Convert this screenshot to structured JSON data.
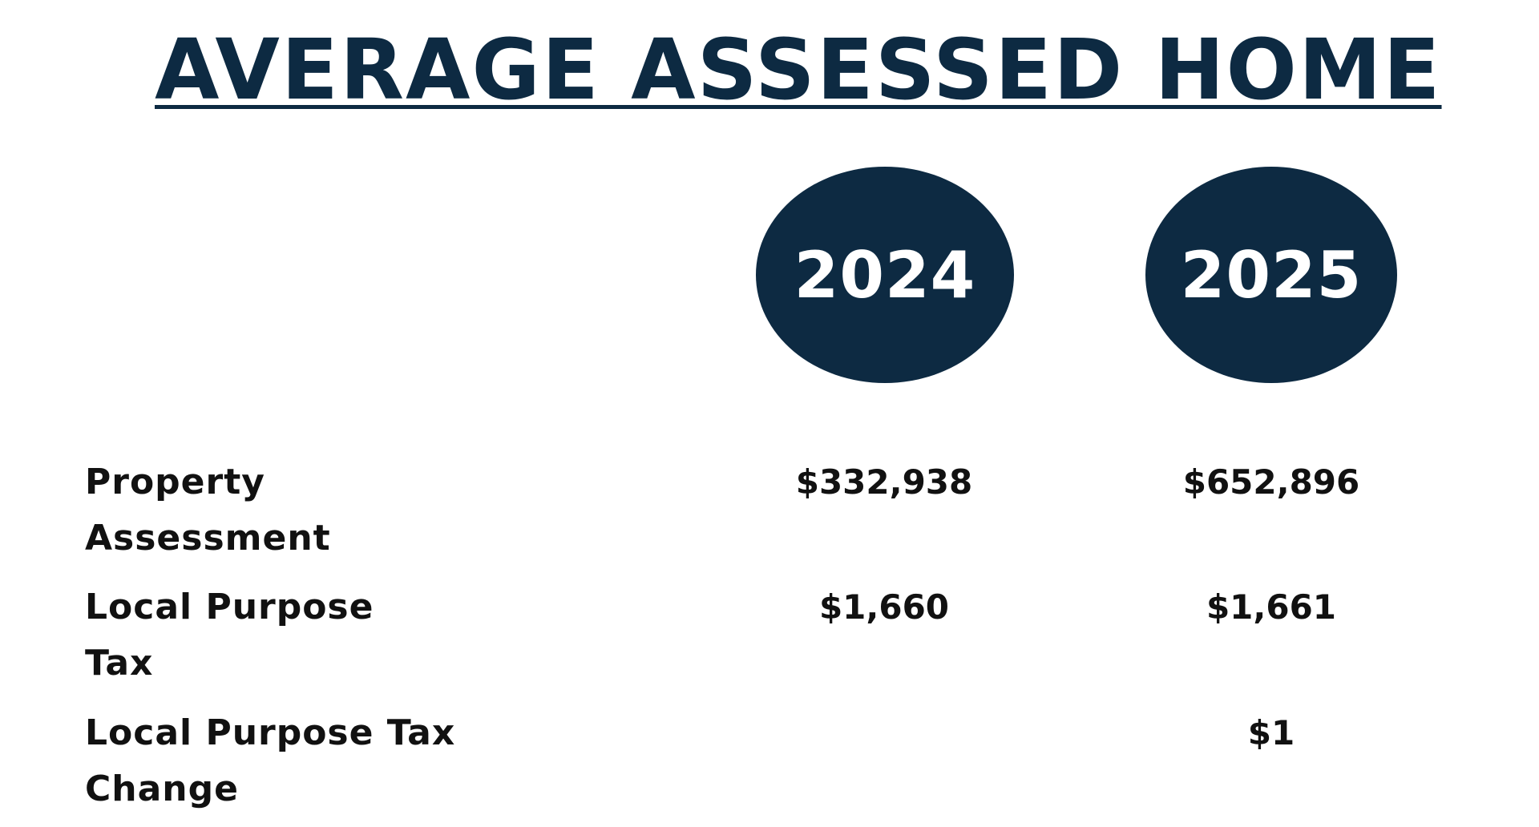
{
  "title": "AVERAGE ASSESSED HOME",
  "years": {
    "y2024": "2024",
    "y2025": "2025"
  },
  "rows": [
    {
      "label_line1": "Property",
      "label_line2": "Assessment",
      "value_2024": "$332,938",
      "value_2025": "$652,896"
    },
    {
      "label_line1": "Local Purpose",
      "label_line2": "Tax",
      "value_2024": "$1,660",
      "value_2025": "$1,661"
    },
    {
      "label_line1": "Local Purpose Tax",
      "label_line2": "Change",
      "value_2024": "",
      "value_2025": "$1"
    }
  ],
  "colors": {
    "navy": "#0d2a42",
    "text": "#111111",
    "background": "#ffffff"
  }
}
